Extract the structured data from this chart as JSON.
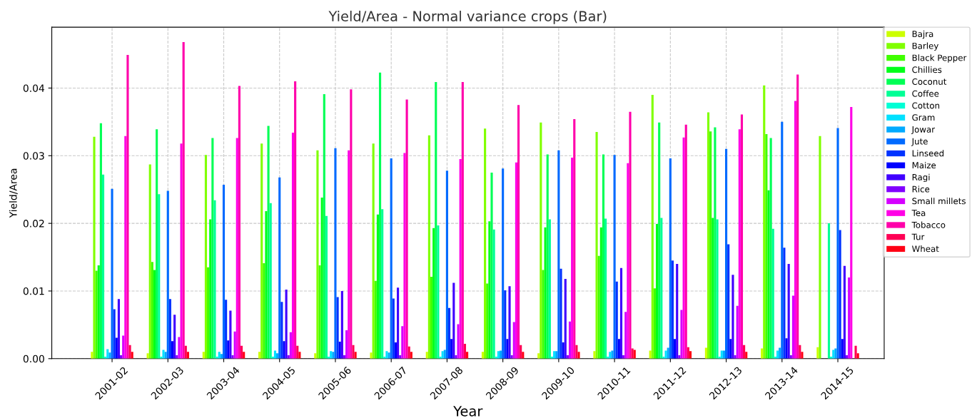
{
  "chart_data": {
    "type": "bar",
    "title": "Yield/Area - Normal variance crops (Bar)",
    "xlabel": "Year",
    "ylabel": "Yield/Area",
    "categories": [
      "2001-02",
      "2002-03",
      "2003-04",
      "2004-05",
      "2005-06",
      "2006-07",
      "2007-08",
      "2008-09",
      "2009-10",
      "2010-11",
      "2011-12",
      "2012-13",
      "2013-14",
      "2014-15"
    ],
    "ylim": [
      0,
      0.049
    ],
    "yticks": [
      {
        "value": 0,
        "label": "0.00"
      },
      {
        "value": 0.01,
        "label": "0.01"
      },
      {
        "value": 0.02,
        "label": "0.02"
      },
      {
        "value": 0.03,
        "label": "0.03"
      },
      {
        "value": 0.04,
        "label": "0.04"
      }
    ],
    "grid": true,
    "legend": "top right",
    "series": [
      {
        "name": "Bajra",
        "color": "#ccff00",
        "values": [
          0.001,
          0.0008,
          0.001,
          0.001,
          0.0008,
          0.0009,
          0.001,
          0.001,
          0.0008,
          0.0011,
          0.0012,
          0.0016,
          0.0015,
          0.0017
        ]
      },
      {
        "name": "Barley",
        "color": "#80ff00",
        "values": [
          0.0328,
          0.0287,
          0.0301,
          0.0318,
          0.0308,
          0.0318,
          0.033,
          0.034,
          0.0349,
          0.0335,
          0.039,
          0.0364,
          0.0404,
          0.0329
        ]
      },
      {
        "name": "Black Pepper",
        "color": "#40ff00",
        "values": [
          0.013,
          0.0143,
          0.0135,
          0.0141,
          0.0138,
          0.0115,
          0.0121,
          0.0111,
          0.0131,
          0.0152,
          0.0104,
          0.0336,
          0.0332,
          null
        ]
      },
      {
        "name": "Chillies",
        "color": "#00ff1a",
        "values": [
          0.0138,
          0.0131,
          0.0206,
          0.0218,
          0.0238,
          0.0213,
          0.0193,
          0.0203,
          0.0194,
          0.0194,
          0.0199,
          0.0208,
          0.0249,
          null
        ]
      },
      {
        "name": "Coconut",
        "color": "#00ff55",
        "values": [
          0.0348,
          0.0339,
          0.0326,
          0.0344,
          0.0391,
          0.0423,
          0.0409,
          0.0275,
          0.0302,
          0.0302,
          0.0349,
          0.0342,
          0.0326,
          null
        ]
      },
      {
        "name": "Coffee",
        "color": "#00ff95",
        "values": [
          0.0272,
          0.0243,
          0.0234,
          0.023,
          0.0211,
          0.0221,
          0.0197,
          0.0191,
          0.0206,
          0.0207,
          0.0208,
          0.0206,
          0.0192,
          0.02
        ]
      },
      {
        "name": "Cotton",
        "color": "#00ffd5",
        "values": [
          0.0003,
          0.0003,
          0.0003,
          0.0003,
          0.0003,
          0.0003,
          0.0003,
          0.0003,
          0.0003,
          0.0003,
          0.0003,
          0.0003,
          0.0003,
          0.0003
        ]
      },
      {
        "name": "Gram",
        "color": "#00e1ff",
        "values": [
          0.0014,
          0.0013,
          0.001,
          0.0012,
          0.0011,
          0.0011,
          0.0011,
          0.0011,
          0.0011,
          0.001,
          0.0012,
          0.0012,
          0.0012,
          0.0013
        ]
      },
      {
        "name": "Jowar",
        "color": "#00aaff",
        "values": [
          0.0009,
          0.001,
          0.0007,
          0.0008,
          0.001,
          0.0009,
          0.0013,
          0.0012,
          0.0011,
          0.0012,
          0.0016,
          0.0012,
          0.0016,
          0.0015
        ]
      },
      {
        "name": "Jute",
        "color": "#006aff",
        "values": [
          0.0251,
          0.0248,
          0.0257,
          0.0268,
          0.0311,
          0.0296,
          0.0278,
          0.0281,
          0.0308,
          0.0301,
          0.0296,
          0.031,
          0.035,
          0.0341
        ]
      },
      {
        "name": "Linseed",
        "color": "#0033ff",
        "values": [
          0.0073,
          0.0088,
          0.0087,
          0.0084,
          0.0091,
          0.0089,
          0.0075,
          0.0101,
          0.0133,
          0.0114,
          0.0145,
          0.0169,
          0.0164,
          0.019
        ]
      },
      {
        "name": "Maize",
        "color": "#0000ff",
        "values": [
          0.0031,
          0.0026,
          0.0027,
          0.0026,
          0.0025,
          0.0024,
          0.0029,
          0.0029,
          0.0024,
          0.0029,
          0.0029,
          0.0029,
          0.003,
          0.0029
        ]
      },
      {
        "name": "Ragi",
        "color": "#4000ff",
        "values": [
          0.0088,
          0.0065,
          0.0071,
          0.0102,
          0.01,
          0.0105,
          0.0112,
          0.0107,
          0.0118,
          0.0134,
          0.014,
          0.0124,
          0.014,
          0.0137
        ]
      },
      {
        "name": "Rice",
        "color": "#8000ff",
        "values": [
          0.0005,
          0.0005,
          0.0005,
          0.0005,
          0.0005,
          0.0005,
          0.0005,
          0.0005,
          0.0005,
          0.0005,
          0.0005,
          0.0005,
          0.0005,
          0.0005
        ]
      },
      {
        "name": "Small millets",
        "color": "#d500ff",
        "values": [
          0.0034,
          0.0032,
          0.004,
          0.0039,
          0.0042,
          0.0048,
          0.0051,
          0.0054,
          0.0055,
          0.0069,
          0.0072,
          0.0078,
          0.0093,
          0.012
        ]
      },
      {
        "name": "Tea",
        "color": "#ff00e6",
        "values": [
          0.0329,
          0.0318,
          0.0326,
          0.0334,
          0.0308,
          0.0304,
          0.0295,
          0.029,
          0.0297,
          0.0289,
          0.0327,
          0.0339,
          0.0381,
          0.0372
        ]
      },
      {
        "name": "Tobacco",
        "color": "#ff00aa",
        "values": [
          0.0449,
          0.0468,
          0.0403,
          0.041,
          0.0398,
          0.0383,
          0.0409,
          0.0375,
          0.0354,
          0.0365,
          0.0346,
          0.0361,
          0.042,
          null
        ]
      },
      {
        "name": "Tur",
        "color": "#ff0055",
        "values": [
          0.002,
          0.0019,
          0.0019,
          0.0019,
          0.002,
          0.0018,
          0.0022,
          0.002,
          0.002,
          0.0015,
          0.0017,
          0.002,
          0.002,
          0.0019
        ]
      },
      {
        "name": "Wheat",
        "color": "#ff0015",
        "values": [
          0.001,
          0.001,
          0.001,
          0.001,
          0.001,
          0.001,
          0.001,
          0.001,
          0.001,
          0.0013,
          0.0011,
          0.001,
          0.001,
          0.0008
        ]
      }
    ]
  }
}
